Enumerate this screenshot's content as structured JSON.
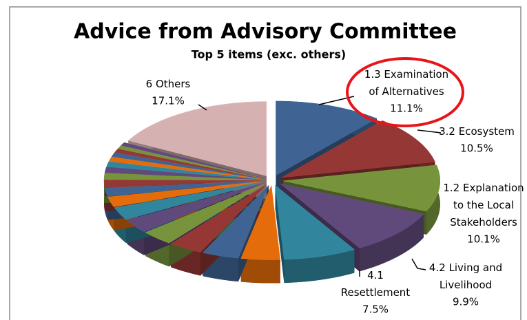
{
  "chart_data": {
    "type": "pie",
    "title": "Advice from Advisory Committee",
    "subtitle": "Top 5 items (exc. others)",
    "categories": [
      "1.3 Examination of Alternatives",
      "3.2 Ecosystem",
      "1.2 Explanation to the Local Stakeholders",
      "4.2 Living and Livelihood",
      "4.1 Resettlement",
      null,
      null,
      null,
      null,
      null,
      null,
      null,
      null,
      null,
      null,
      null,
      null,
      null,
      null,
      null,
      null,
      null,
      "6 Others"
    ],
    "values": [
      11.1,
      10.5,
      10.1,
      9.9,
      7.5,
      4.0,
      3.8,
      3.5,
      3.3,
      3.0,
      2.8,
      2.2,
      1.8,
      1.6,
      1.4,
      1.2,
      1.1,
      1.0,
      0.9,
      0.8,
      0.7,
      0.7,
      17.1
    ],
    "value_labels": [
      "11.1%",
      "10.5%",
      "10.1%",
      "9.9%",
      "7.5%",
      null,
      null,
      null,
      null,
      null,
      null,
      null,
      null,
      null,
      null,
      null,
      null,
      null,
      null,
      null,
      null,
      null,
      "17.1%"
    ],
    "colors": [
      "#3f6493",
      "#953735",
      "#77933c",
      "#604a7b",
      "#31859c",
      "#e46c0a",
      "#3f6493",
      "#953735",
      "#77933c",
      "#604a7b",
      "#31859c",
      "#e46c0a",
      "#3f6493",
      "#953735",
      "#77933c",
      "#604a7b",
      "#31859c",
      "#e46c0a",
      "#3f6493",
      "#953735",
      "#77933c",
      "#604a7b",
      "#d6b1b1"
    ]
  }
}
